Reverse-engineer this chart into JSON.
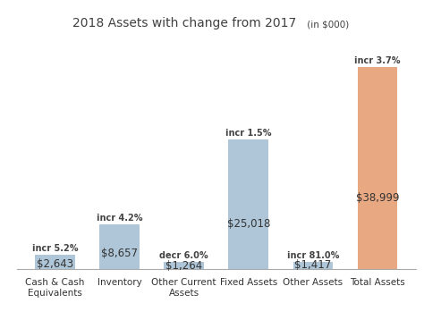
{
  "title": "2018 Assets with change from 2017",
  "title_suffix": " (in $000)",
  "categories": [
    "Cash & Cash\nEquivalents",
    "Inventory",
    "Other Current\nAssets",
    "Fixed Assets",
    "Other Assets",
    "Total Assets"
  ],
  "values": [
    2643,
    8657,
    1264,
    25018,
    1417,
    38999
  ],
  "bar_colors": [
    "#aec6d8",
    "#aec6d8",
    "#aec6d8",
    "#aec6d8",
    "#aec6d8",
    "#e8a882"
  ],
  "change_labels": [
    "incr 5.2%",
    "incr 4.2%",
    "decr 6.0%",
    "incr 1.5%",
    "incr 81.0%",
    "incr 3.7%"
  ],
  "value_labels": [
    "$2,643",
    "$8,657",
    "$1,264",
    "$25,018",
    "$1,417",
    "$38,999"
  ],
  "ylim": [
    0,
    44000
  ],
  "background_color": "#ffffff",
  "bar_width": 0.62,
  "title_fontsize": 10,
  "title_suffix_fontsize": 7.5,
  "value_fontsize": 8.5,
  "change_fontsize": 7,
  "xlabel_fontsize": 7.5
}
